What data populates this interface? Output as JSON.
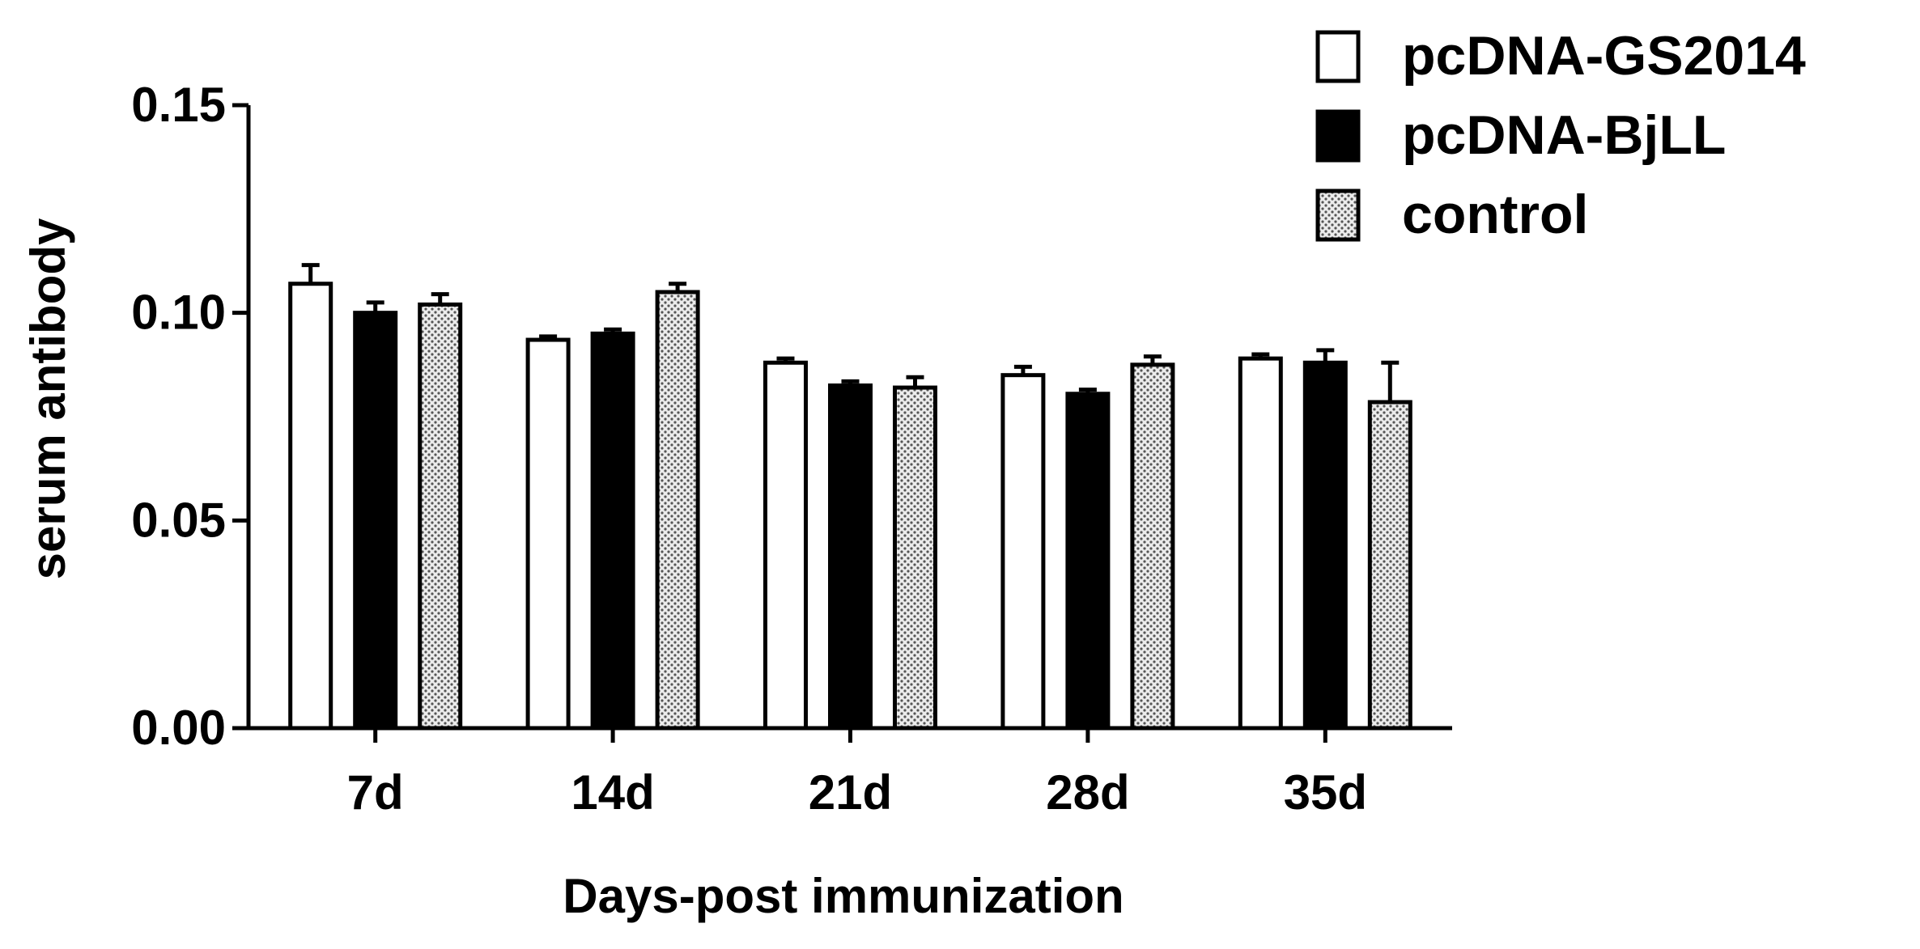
{
  "chart_data": {
    "type": "bar",
    "title": "",
    "xlabel": "Days-post immunization",
    "ylabel": "serum antibody",
    "ylim": [
      0,
      0.15
    ],
    "yticks": [
      "0.00",
      "0.05",
      "0.10",
      "0.15"
    ],
    "ytick_values": [
      0,
      0.05,
      0.1,
      0.15
    ],
    "categories": [
      "7d",
      "14d",
      "21d",
      "28d",
      "35d"
    ],
    "series": [
      {
        "name": "pcDNA-GS2014",
        "values": [
          0.107,
          0.0935,
          0.088,
          0.085,
          0.089
        ],
        "errors": [
          0.0045,
          0.0008,
          0.001,
          0.002,
          0.001
        ],
        "fill": "white",
        "color": "#ffffff"
      },
      {
        "name": "pcDNA-BjLL",
        "values": [
          0.1,
          0.095,
          0.0825,
          0.0805,
          0.088
        ],
        "errors": [
          0.0025,
          0.001,
          0.001,
          0.001,
          0.003
        ],
        "fill": "solid",
        "color": "#000000"
      },
      {
        "name": "control",
        "values": [
          0.102,
          0.105,
          0.082,
          0.0875,
          0.0785
        ],
        "errors": [
          0.0025,
          0.002,
          0.0025,
          0.002,
          0.0095
        ],
        "fill": "dotted",
        "color": "#d9d9d9"
      }
    ],
    "legend": "top-right",
    "grid": false
  }
}
